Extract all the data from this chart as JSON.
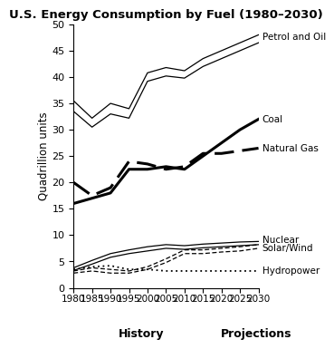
{
  "title": "U.S. Energy Consumption by Fuel (1980–2030)",
  "ylabel": "Quadrillion units",
  "xlabel_history": "History",
  "xlabel_projections": "Projections",
  "years": [
    1980,
    1985,
    1990,
    1995,
    2000,
    2005,
    2010,
    2015,
    2020,
    2025,
    2030
  ],
  "petrol_upper": [
    35.5,
    32.2,
    35.0,
    34.0,
    40.8,
    41.8,
    41.2,
    43.5,
    45.0,
    46.5,
    48.0
  ],
  "petrol_lower": [
    33.5,
    30.5,
    33.0,
    32.2,
    39.2,
    40.2,
    39.8,
    42.0,
    43.5,
    45.0,
    46.5
  ],
  "coal": [
    16.0,
    17.0,
    18.0,
    22.5,
    22.5,
    23.0,
    22.5,
    25.0,
    27.5,
    30.0,
    32.0
  ],
  "natural_gas": [
    20.0,
    17.5,
    19.0,
    24.0,
    23.5,
    22.5,
    23.0,
    25.5,
    25.5,
    26.0,
    26.5
  ],
  "nuclear_upper": [
    3.8,
    5.2,
    6.5,
    7.2,
    7.8,
    8.2,
    8.0,
    8.3,
    8.5,
    8.7,
    8.8
  ],
  "nuclear_lower": [
    3.3,
    4.5,
    5.8,
    6.5,
    7.0,
    7.5,
    7.3,
    7.6,
    7.8,
    8.0,
    8.2
  ],
  "solar_upper": [
    3.2,
    3.8,
    3.5,
    3.2,
    4.0,
    5.5,
    7.2,
    7.2,
    7.5,
    7.8,
    8.2
  ],
  "solar_lower": [
    2.8,
    3.2,
    2.8,
    2.8,
    3.5,
    4.8,
    6.5,
    6.5,
    6.8,
    7.0,
    7.5
  ],
  "hydropower": [
    3.5,
    4.0,
    4.2,
    3.5,
    3.5,
    3.2,
    3.2,
    3.2,
    3.2,
    3.2,
    3.2
  ],
  "ylim": [
    0,
    50
  ],
  "yticks": [
    0,
    5,
    10,
    15,
    20,
    25,
    30,
    35,
    40,
    45,
    50
  ],
  "xticks": [
    1980,
    1985,
    1990,
    1995,
    2000,
    2005,
    2010,
    2015,
    2020,
    2025,
    2030
  ],
  "label_petrol": "Petrol and Oil",
  "label_coal": "Coal",
  "label_gas": "Natural Gas",
  "label_nuclear": "Nuclear",
  "label_solar": "Solar/Wind",
  "label_hydro": "Hydropower"
}
